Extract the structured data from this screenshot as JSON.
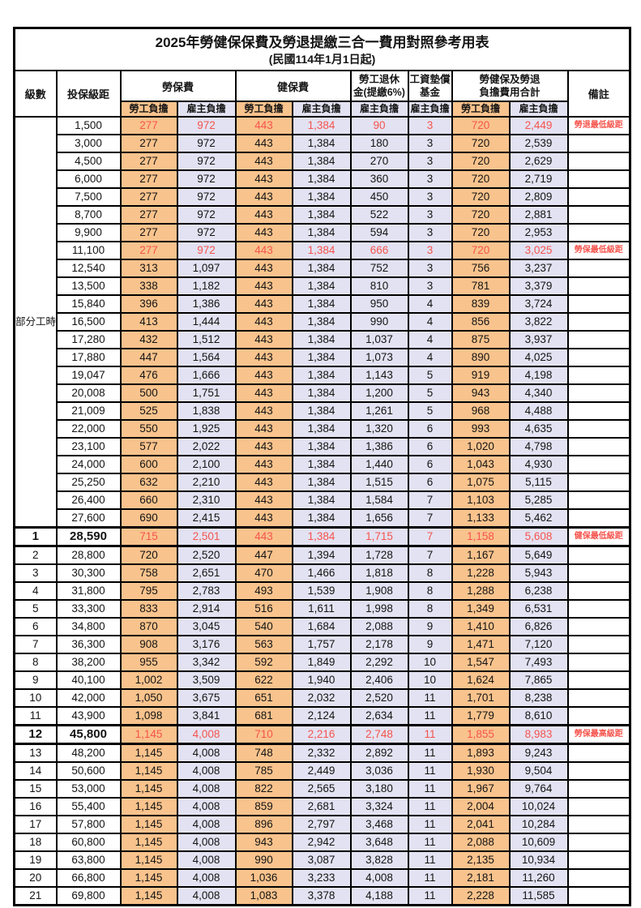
{
  "page": {
    "title_line1": "2025年勞健保保費及勞退提繳三合一費用對照參考用表",
    "title_line2": "(民國114年1月1日起)"
  },
  "colors": {
    "employee_bg": "#F9C38D",
    "employer_bg": "#E3E2F2",
    "highlight_red": "#F5544D"
  },
  "header": {
    "level": "級數",
    "bracket": "投保級距",
    "labor_insurance": "勞保費",
    "health_insurance": "健保費",
    "pension_line1": "勞工退休",
    "pension_line2": "金(提繳6%)",
    "wage_fund_line1": "工資墊償",
    "wage_fund_line2": "基金",
    "total_line1": "勞健保及勞退",
    "total_line2": "負擔費用合計",
    "remark": "備註",
    "employee_label": "勞工負擔",
    "employer_label": "雇主負擔"
  },
  "table": {
    "group_label": "部分工時",
    "rows": [
      {
        "bracket": "1,500",
        "values": [
          "277",
          "972",
          "443",
          "1,384",
          "90",
          "3",
          "720",
          "2,449"
        ],
        "remark": "勞退最低級距",
        "red": true
      },
      {
        "bracket": "3,000",
        "values": [
          "277",
          "972",
          "443",
          "1,384",
          "180",
          "3",
          "720",
          "2,539"
        ]
      },
      {
        "bracket": "4,500",
        "values": [
          "277",
          "972",
          "443",
          "1,384",
          "270",
          "3",
          "720",
          "2,629"
        ]
      },
      {
        "bracket": "6,000",
        "values": [
          "277",
          "972",
          "443",
          "1,384",
          "360",
          "3",
          "720",
          "2,719"
        ]
      },
      {
        "bracket": "7,500",
        "values": [
          "277",
          "972",
          "443",
          "1,384",
          "450",
          "3",
          "720",
          "2,809"
        ]
      },
      {
        "bracket": "8,700",
        "values": [
          "277",
          "972",
          "443",
          "1,384",
          "522",
          "3",
          "720",
          "2,881"
        ]
      },
      {
        "bracket": "9,900",
        "values": [
          "277",
          "972",
          "443",
          "1,384",
          "594",
          "3",
          "720",
          "2,953"
        ]
      },
      {
        "bracket": "11,100",
        "values": [
          "277",
          "972",
          "443",
          "1,384",
          "666",
          "3",
          "720",
          "3,025"
        ],
        "remark": "勞保最低級距",
        "red": true
      },
      {
        "bracket": "12,540",
        "values": [
          "313",
          "1,097",
          "443",
          "1,384",
          "752",
          "3",
          "756",
          "3,237"
        ]
      },
      {
        "bracket": "13,500",
        "values": [
          "338",
          "1,182",
          "443",
          "1,384",
          "810",
          "3",
          "781",
          "3,379"
        ]
      },
      {
        "bracket": "15,840",
        "values": [
          "396",
          "1,386",
          "443",
          "1,384",
          "950",
          "4",
          "839",
          "3,724"
        ]
      },
      {
        "bracket": "16,500",
        "values": [
          "413",
          "1,444",
          "443",
          "1,384",
          "990",
          "4",
          "856",
          "3,822"
        ]
      },
      {
        "bracket": "17,280",
        "values": [
          "432",
          "1,512",
          "443",
          "1,384",
          "1,037",
          "4",
          "875",
          "3,937"
        ]
      },
      {
        "bracket": "17,880",
        "values": [
          "447",
          "1,564",
          "443",
          "1,384",
          "1,073",
          "4",
          "890",
          "4,025"
        ]
      },
      {
        "bracket": "19,047",
        "values": [
          "476",
          "1,666",
          "443",
          "1,384",
          "1,143",
          "5",
          "919",
          "4,198"
        ]
      },
      {
        "bracket": "20,008",
        "values": [
          "500",
          "1,751",
          "443",
          "1,384",
          "1,200",
          "5",
          "943",
          "4,340"
        ]
      },
      {
        "bracket": "21,009",
        "values": [
          "525",
          "1,838",
          "443",
          "1,384",
          "1,261",
          "5",
          "968",
          "4,488"
        ]
      },
      {
        "bracket": "22,000",
        "values": [
          "550",
          "1,925",
          "443",
          "1,384",
          "1,320",
          "6",
          "993",
          "4,635"
        ]
      },
      {
        "bracket": "23,100",
        "values": [
          "577",
          "2,022",
          "443",
          "1,384",
          "1,386",
          "6",
          "1,020",
          "4,798"
        ]
      },
      {
        "bracket": "24,000",
        "values": [
          "600",
          "2,100",
          "443",
          "1,384",
          "1,440",
          "6",
          "1,043",
          "4,930"
        ]
      },
      {
        "bracket": "25,250",
        "values": [
          "632",
          "2,210",
          "443",
          "1,384",
          "1,515",
          "6",
          "1,075",
          "5,115"
        ]
      },
      {
        "bracket": "26,400",
        "values": [
          "660",
          "2,310",
          "443",
          "1,384",
          "1,584",
          "7",
          "1,103",
          "5,285"
        ]
      },
      {
        "bracket": "27,600",
        "values": [
          "690",
          "2,415",
          "443",
          "1,384",
          "1,656",
          "7",
          "1,133",
          "5,462"
        ]
      },
      {
        "level": "1",
        "bracket": "28,590",
        "values": [
          "715",
          "2,501",
          "443",
          "1,384",
          "1,715",
          "7",
          "1,158",
          "5,608"
        ],
        "remark": "健保最低級距",
        "red": true,
        "thick": true,
        "bold": true
      },
      {
        "level": "2",
        "bracket": "28,800",
        "values": [
          "720",
          "2,520",
          "447",
          "1,394",
          "1,728",
          "7",
          "1,167",
          "5,649"
        ]
      },
      {
        "level": "3",
        "bracket": "30,300",
        "values": [
          "758",
          "2,651",
          "470",
          "1,466",
          "1,818",
          "8",
          "1,228",
          "5,943"
        ]
      },
      {
        "level": "4",
        "bracket": "31,800",
        "values": [
          "795",
          "2,783",
          "493",
          "1,539",
          "1,908",
          "8",
          "1,288",
          "6,238"
        ]
      },
      {
        "level": "5",
        "bracket": "33,300",
        "values": [
          "833",
          "2,914",
          "516",
          "1,611",
          "1,998",
          "8",
          "1,349",
          "6,531"
        ]
      },
      {
        "level": "6",
        "bracket": "34,800",
        "values": [
          "870",
          "3,045",
          "540",
          "1,684",
          "2,088",
          "9",
          "1,410",
          "6,826"
        ]
      },
      {
        "level": "7",
        "bracket": "36,300",
        "values": [
          "908",
          "3,176",
          "563",
          "1,757",
          "2,178",
          "9",
          "1,471",
          "7,120"
        ]
      },
      {
        "level": "8",
        "bracket": "38,200",
        "values": [
          "955",
          "3,342",
          "592",
          "1,849",
          "2,292",
          "10",
          "1,547",
          "7,493"
        ]
      },
      {
        "level": "9",
        "bracket": "40,100",
        "values": [
          "1,002",
          "3,509",
          "622",
          "1,940",
          "2,406",
          "10",
          "1,624",
          "7,865"
        ]
      },
      {
        "level": "10",
        "bracket": "42,000",
        "values": [
          "1,050",
          "3,675",
          "651",
          "2,032",
          "2,520",
          "11",
          "1,701",
          "8,238"
        ]
      },
      {
        "level": "11",
        "bracket": "43,900",
        "values": [
          "1,098",
          "3,841",
          "681",
          "2,124",
          "2,634",
          "11",
          "1,779",
          "8,610"
        ]
      },
      {
        "level": "12",
        "bracket": "45,800",
        "values": [
          "1,145",
          "4,008",
          "710",
          "2,216",
          "2,748",
          "11",
          "1,855",
          "8,983"
        ],
        "remark": "勞保最高級距",
        "red": true,
        "thick": true,
        "bold": true
      },
      {
        "level": "13",
        "bracket": "48,200",
        "values": [
          "1,145",
          "4,008",
          "748",
          "2,332",
          "2,892",
          "11",
          "1,893",
          "9,243"
        ]
      },
      {
        "level": "14",
        "bracket": "50,600",
        "values": [
          "1,145",
          "4,008",
          "785",
          "2,449",
          "3,036",
          "11",
          "1,930",
          "9,504"
        ]
      },
      {
        "level": "15",
        "bracket": "53,000",
        "values": [
          "1,145",
          "4,008",
          "822",
          "2,565",
          "3,180",
          "11",
          "1,967",
          "9,764"
        ]
      },
      {
        "level": "16",
        "bracket": "55,400",
        "values": [
          "1,145",
          "4,008",
          "859",
          "2,681",
          "3,324",
          "11",
          "2,004",
          "10,024"
        ]
      },
      {
        "level": "17",
        "bracket": "57,800",
        "values": [
          "1,145",
          "4,008",
          "896",
          "2,797",
          "3,468",
          "11",
          "2,041",
          "10,284"
        ]
      },
      {
        "level": "18",
        "bracket": "60,800",
        "values": [
          "1,145",
          "4,008",
          "943",
          "2,942",
          "3,648",
          "11",
          "2,088",
          "10,609"
        ]
      },
      {
        "level": "19",
        "bracket": "63,800",
        "values": [
          "1,145",
          "4,008",
          "990",
          "3,087",
          "3,828",
          "11",
          "2,135",
          "10,934"
        ]
      },
      {
        "level": "20",
        "bracket": "66,800",
        "values": [
          "1,145",
          "4,008",
          "1,036",
          "3,233",
          "4,008",
          "11",
          "2,181",
          "11,260"
        ]
      },
      {
        "level": "21",
        "bracket": "69,800",
        "values": [
          "1,145",
          "4,008",
          "1,083",
          "3,378",
          "4,188",
          "11",
          "2,228",
          "11,585"
        ]
      }
    ]
  }
}
